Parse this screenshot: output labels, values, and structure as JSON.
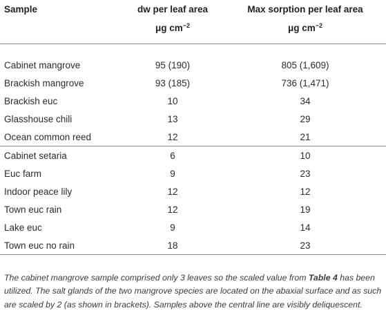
{
  "table": {
    "headers": [
      {
        "label": "Sample",
        "unit": ""
      },
      {
        "label": "dw per leaf area",
        "unit": "μg cm",
        "unit_exp": "−2"
      },
      {
        "label": "Max sorption per leaf area",
        "unit": "μg cm",
        "unit_exp": "−2"
      }
    ],
    "group_above": [
      {
        "sample": "Cabinet mangrove",
        "dw": "95 (190)",
        "max": "805 (1,609)"
      },
      {
        "sample": "Brackish mangrove",
        "dw": "93 (185)",
        "max": "736 (1,471)"
      },
      {
        "sample": "Brackish euc",
        "dw": "10",
        "max": "34"
      },
      {
        "sample": "Glasshouse chili",
        "dw": "13",
        "max": "29"
      },
      {
        "sample": "Ocean common reed",
        "dw": "12",
        "max": "21"
      }
    ],
    "group_below": [
      {
        "sample": "Cabinet setaria",
        "dw": "6",
        "max": "10"
      },
      {
        "sample": "Euc farm",
        "dw": "9",
        "max": "23"
      },
      {
        "sample": "Indoor peace lily",
        "dw": "12",
        "max": "12"
      },
      {
        "sample": "Town euc rain",
        "dw": "12",
        "max": "19"
      },
      {
        "sample": "Lake euc",
        "dw": "9",
        "max": "14"
      },
      {
        "sample": "Town euc no rain",
        "dw": "18",
        "max": "23"
      }
    ]
  },
  "footnote": {
    "part1": "The cabinet mangrove sample comprised only 3 leaves so the scaled value from ",
    "ref": "Table 4",
    "part2": " has been utilized. The salt glands of the two mangrove species are located on the abaxial surface and as such are scaled by 2 (as shown in brackets). Samples above the central line are visibly deliquescent."
  }
}
